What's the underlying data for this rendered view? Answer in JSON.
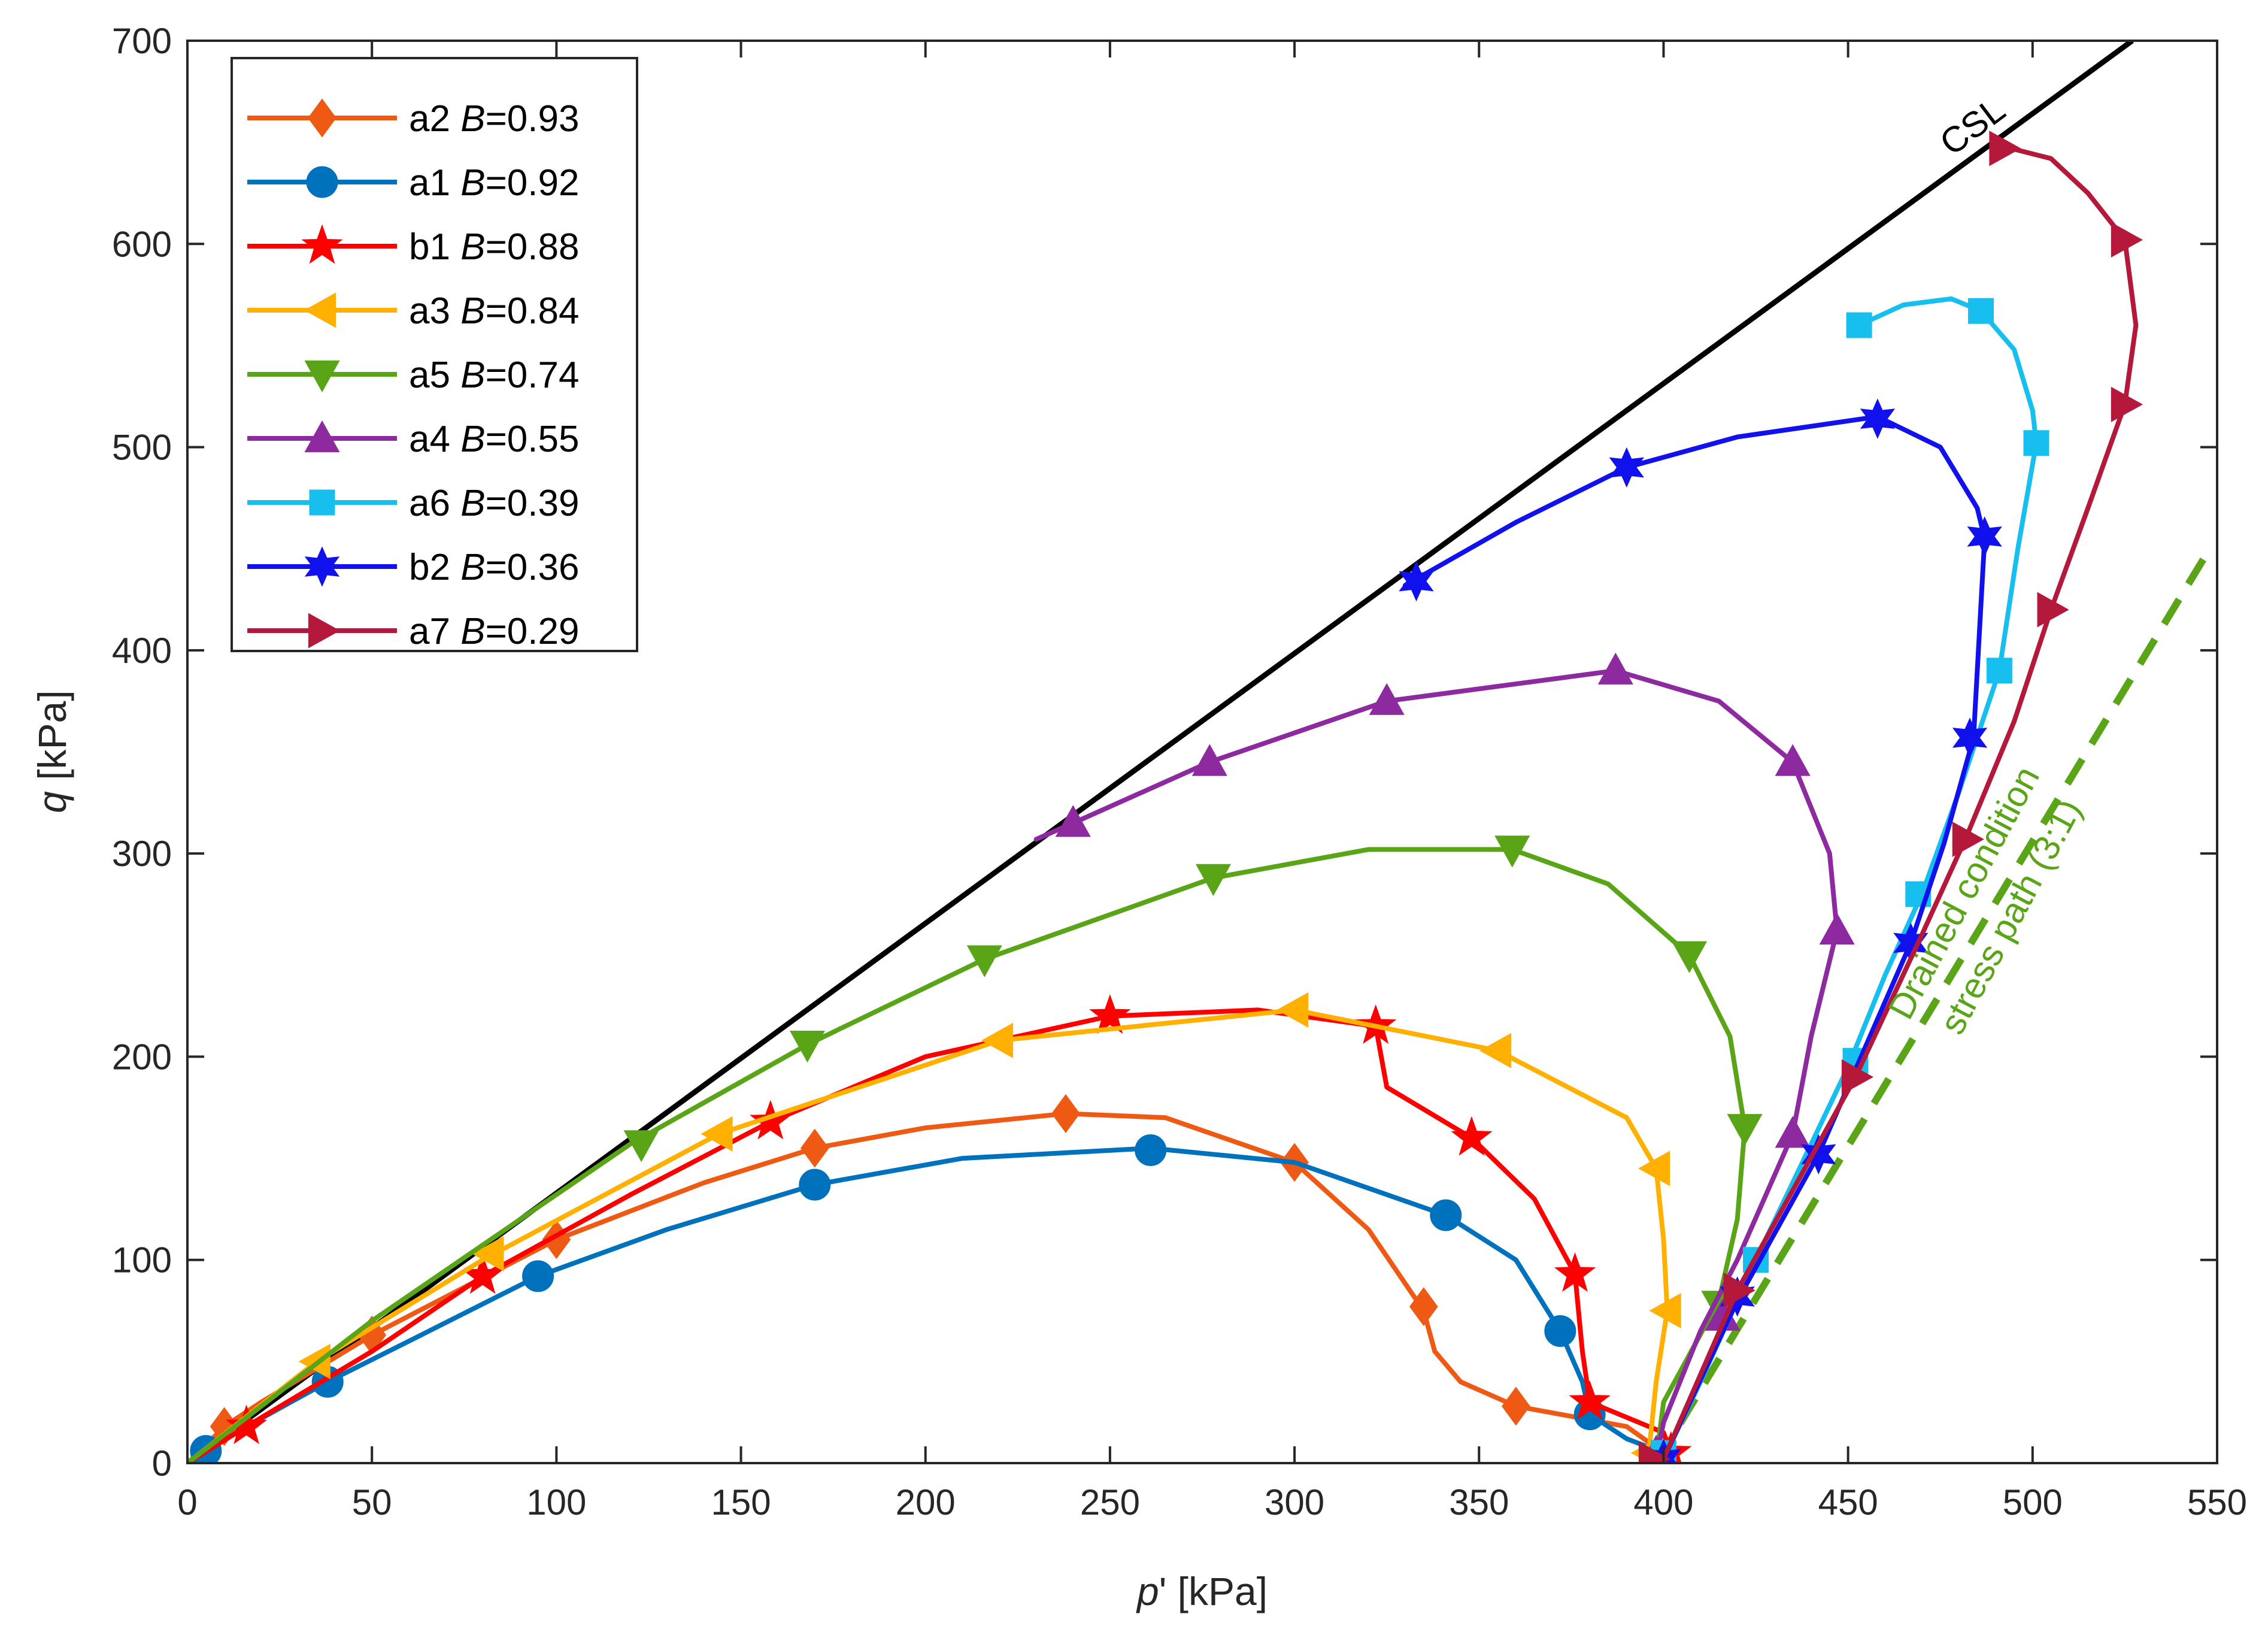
{
  "chart_data": {
    "type": "line",
    "title": "",
    "xlabel": {
      "italic": "p",
      "rest": "' [kPa]"
    },
    "ylabel": {
      "italic": "q",
      "rest": " [kPa]"
    },
    "xlim": [
      0,
      550
    ],
    "ylim": [
      0,
      700
    ],
    "xticks": [
      "0",
      "50",
      "100",
      "150",
      "200",
      "250",
      "300",
      "350",
      "400",
      "450",
      "500",
      "550"
    ],
    "yticks": [
      "0",
      "100",
      "200",
      "300",
      "400",
      "500",
      "600",
      "700"
    ],
    "legend_position": "top-left",
    "series": [
      {
        "name": "a2",
        "b_label": "B",
        "b_value": "=0.93",
        "color": "#EE5A14",
        "marker": "diamond",
        "points": [
          [
            0,
            0
          ],
          [
            3,
            5
          ],
          [
            10,
            18
          ],
          [
            20,
            30
          ],
          [
            50,
            63
          ],
          [
            100,
            110
          ],
          [
            140,
            138
          ],
          [
            170,
            155
          ],
          [
            200,
            165
          ],
          [
            238,
            172
          ],
          [
            265,
            170
          ],
          [
            300,
            148
          ],
          [
            320,
            115
          ],
          [
            335,
            75
          ],
          [
            338,
            55
          ],
          [
            345,
            40
          ],
          [
            360,
            28
          ],
          [
            390,
            18
          ],
          [
            400,
            5
          ]
        ],
        "markers": [
          [
            10,
            18
          ],
          [
            50,
            63
          ],
          [
            100,
            110
          ],
          [
            170,
            155
          ],
          [
            238,
            172
          ],
          [
            300,
            148
          ],
          [
            335,
            77
          ],
          [
            360,
            28
          ]
        ]
      },
      {
        "name": "a1",
        "b_label": "B",
        "b_value": "=0.92",
        "color": "#0072BD",
        "marker": "circle",
        "points": [
          [
            0,
            0
          ],
          [
            5,
            6
          ],
          [
            20,
            22
          ],
          [
            38,
            40
          ],
          [
            60,
            60
          ],
          [
            95,
            92
          ],
          [
            130,
            115
          ],
          [
            170,
            137
          ],
          [
            210,
            150
          ],
          [
            261,
            155
          ],
          [
            300,
            148
          ],
          [
            341,
            122
          ],
          [
            360,
            100
          ],
          [
            372,
            65
          ],
          [
            378,
            40
          ],
          [
            380,
            24
          ],
          [
            390,
            12
          ],
          [
            400,
            5
          ]
        ],
        "markers": [
          [
            5,
            6
          ],
          [
            38,
            40
          ],
          [
            95,
            92
          ],
          [
            170,
            137
          ],
          [
            261,
            154
          ],
          [
            341,
            122
          ],
          [
            372,
            65
          ],
          [
            380,
            24
          ]
        ]
      },
      {
        "name": "b1",
        "b_label": "B",
        "b_value": "=0.88",
        "color": "#FF0000",
        "marker": "star5",
        "points": [
          [
            0,
            0
          ],
          [
            16,
            18
          ],
          [
            50,
            55
          ],
          [
            80,
            92
          ],
          [
            120,
            132
          ],
          [
            158,
            168
          ],
          [
            200,
            200
          ],
          [
            250,
            220
          ],
          [
            290,
            223
          ],
          [
            322,
            215
          ],
          [
            325,
            185
          ],
          [
            348,
            160
          ],
          [
            365,
            130
          ],
          [
            376,
            93
          ],
          [
            378,
            55
          ],
          [
            380,
            30
          ],
          [
            400,
            15
          ],
          [
            402,
            5
          ]
        ],
        "markers": [
          [
            16,
            18
          ],
          [
            80,
            92
          ],
          [
            158,
            168
          ],
          [
            250,
            220
          ],
          [
            322,
            215
          ],
          [
            348,
            160
          ],
          [
            376,
            93
          ],
          [
            380,
            30
          ],
          [
            402,
            5
          ]
        ]
      },
      {
        "name": "a3",
        "b_label": "B",
        "b_value": "=0.84",
        "color": "#FFB000",
        "marker": "triangle-left",
        "points": [
          [
            0,
            0
          ],
          [
            35,
            50
          ],
          [
            80,
            100
          ],
          [
            144,
            162
          ],
          [
            220,
            208
          ],
          [
            300,
            223
          ],
          [
            355,
            203
          ],
          [
            390,
            170
          ],
          [
            398,
            145
          ],
          [
            400,
            110
          ],
          [
            401,
            75
          ],
          [
            398,
            40
          ],
          [
            396,
            5
          ]
        ],
        "markers": [
          [
            35,
            50
          ],
          [
            82,
            103
          ],
          [
            144,
            162
          ],
          [
            220,
            208
          ],
          [
            300,
            223
          ],
          [
            355,
            203
          ],
          [
            398,
            145
          ],
          [
            401,
            75
          ],
          [
            396,
            5
          ]
        ]
      },
      {
        "name": "a5",
        "b_label": "B",
        "b_value": "=0.74",
        "color": "#59A517",
        "marker": "triangle-down",
        "points": [
          [
            0,
            0
          ],
          [
            50,
            70
          ],
          [
            120,
            157
          ],
          [
            168,
            206
          ],
          [
            216,
            248
          ],
          [
            278,
            288
          ],
          [
            320,
            302
          ],
          [
            359,
            302
          ],
          [
            385,
            285
          ],
          [
            407,
            250
          ],
          [
            418,
            210
          ],
          [
            422,
            165
          ],
          [
            420,
            120
          ],
          [
            415,
            80
          ],
          [
            400,
            30
          ],
          [
            398,
            2
          ]
        ],
        "markers": [
          [
            123,
            157
          ],
          [
            168,
            206
          ],
          [
            216,
            248
          ],
          [
            278,
            288
          ],
          [
            359,
            302
          ],
          [
            407,
            250
          ],
          [
            422,
            165
          ],
          [
            415,
            78
          ],
          [
            398,
            0
          ]
        ]
      },
      {
        "name": "a4",
        "b_label": "B",
        "b_value": "=0.55",
        "color": "#8D2AA0",
        "marker": "triangle-up",
        "points": [
          [
            230,
            307
          ],
          [
            240,
            315
          ],
          [
            277,
            345
          ],
          [
            325,
            375
          ],
          [
            387,
            390
          ],
          [
            415,
            375
          ],
          [
            435,
            345
          ],
          [
            445,
            300
          ],
          [
            447,
            262
          ],
          [
            440,
            210
          ],
          [
            435,
            162
          ],
          [
            420,
            100
          ],
          [
            410,
            65
          ],
          [
            400,
            20
          ],
          [
            398,
            2
          ]
        ],
        "markers": [
          [
            240,
            315
          ],
          [
            277,
            345
          ],
          [
            325,
            375
          ],
          [
            387,
            390
          ],
          [
            435,
            345
          ],
          [
            447,
            262
          ],
          [
            435,
            162
          ],
          [
            416,
            72
          ],
          [
            398,
            5
          ]
        ]
      },
      {
        "name": "a6",
        "b_label": "B",
        "b_value": "=0.39",
        "color": "#17BFEF",
        "marker": "square",
        "points": [
          [
            453,
            560
          ],
          [
            465,
            570
          ],
          [
            478,
            573
          ],
          [
            486,
            567
          ],
          [
            495,
            548
          ],
          [
            500,
            518
          ],
          [
            501,
            502
          ],
          [
            496,
            450
          ],
          [
            491,
            390
          ],
          [
            480,
            330
          ],
          [
            470,
            280
          ],
          [
            460,
            240
          ],
          [
            450,
            195
          ],
          [
            425,
            100
          ],
          [
            410,
            40
          ],
          [
            400,
            2
          ]
        ],
        "markers": [
          [
            453,
            560
          ],
          [
            486,
            567
          ],
          [
            501,
            502
          ],
          [
            491,
            390
          ],
          [
            469,
            280
          ],
          [
            452,
            198
          ],
          [
            425,
            100
          ],
          [
            400,
            5
          ]
        ]
      },
      {
        "name": "b2",
        "b_label": "B",
        "b_value": "=0.36",
        "color": "#1111EE",
        "marker": "star6",
        "points": [
          [
            330,
            432
          ],
          [
            360,
            463
          ],
          [
            390,
            490
          ],
          [
            420,
            505
          ],
          [
            458,
            515
          ],
          [
            475,
            500
          ],
          [
            485,
            470
          ],
          [
            487,
            455
          ],
          [
            484,
            357
          ],
          [
            476,
            305
          ],
          [
            467,
            256
          ],
          [
            442,
            152
          ],
          [
            420,
            80
          ],
          [
            400,
            2
          ]
        ],
        "markers": [
          [
            333,
            434
          ],
          [
            390,
            490
          ],
          [
            458,
            514
          ],
          [
            487,
            456
          ],
          [
            483,
            357
          ],
          [
            467,
            256
          ],
          [
            442,
            152
          ],
          [
            420,
            82
          ],
          [
            400,
            2
          ]
        ]
      },
      {
        "name": "a7",
        "b_label": "B",
        "b_value": "=0.29",
        "color": "#B4183A",
        "marker": "triangle-right",
        "points": [
          [
            492,
            648
          ],
          [
            505,
            642
          ],
          [
            515,
            625
          ],
          [
            525,
            602
          ],
          [
            528,
            560
          ],
          [
            525,
            521
          ],
          [
            515,
            470
          ],
          [
            505,
            420
          ],
          [
            495,
            365
          ],
          [
            482,
            308
          ],
          [
            470,
            260
          ],
          [
            452,
            190
          ],
          [
            420,
            85
          ],
          [
            400,
            2
          ]
        ],
        "markers": [
          [
            492,
            647
          ],
          [
            525,
            602
          ],
          [
            525,
            521
          ],
          [
            505,
            420
          ],
          [
            482,
            307
          ],
          [
            452,
            190
          ],
          [
            420,
            85
          ],
          [
            397,
            2
          ]
        ]
      }
    ],
    "reference_lines": [
      {
        "name": "CSL",
        "label": "CSL",
        "color": "#000000",
        "style": "solid",
        "x": [
          0,
          527
        ],
        "y": [
          0,
          700
        ]
      },
      {
        "name": "drained",
        "label_line1": "Drained condition",
        "label_line2": "stress path (3:1)",
        "color": "#59A517",
        "style": "dashed",
        "x": [
          398,
          547
        ],
        "y": [
          0,
          447
        ]
      }
    ]
  }
}
